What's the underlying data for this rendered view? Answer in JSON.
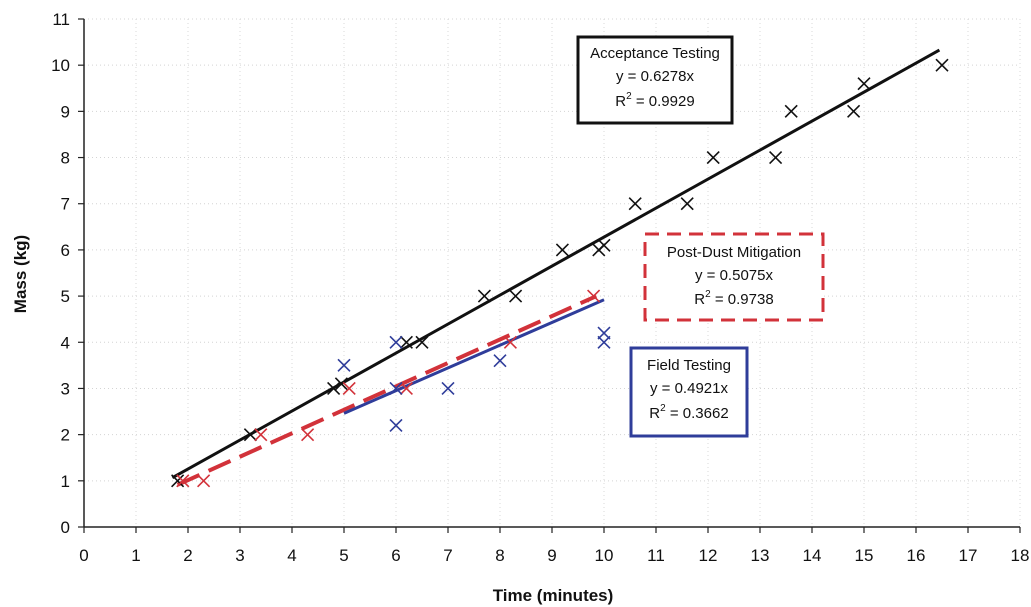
{
  "chart_data": {
    "type": "scatter",
    "xlabel": "Time (minutes)",
    "ylabel": "Mass (kg)",
    "xlim": [
      0,
      18
    ],
    "ylim": [
      0,
      11
    ],
    "x_ticks": [
      "0",
      "1",
      "2",
      "3",
      "4",
      "5",
      "6",
      "7",
      "8",
      "9",
      "10",
      "11",
      "12",
      "13",
      "14",
      "15",
      "16",
      "17",
      "18"
    ],
    "y_ticks": [
      "0",
      "1",
      "2",
      "3",
      "4",
      "5",
      "6",
      "7",
      "8",
      "9",
      "10",
      "11"
    ],
    "grid": true,
    "series": [
      {
        "color": "#111111",
        "marker": "x",
        "points": [
          [
            1.8,
            1
          ],
          [
            3.2,
            2
          ],
          [
            4.8,
            3
          ],
          [
            4.95,
            3.1
          ],
          [
            6.2,
            4
          ],
          [
            6.5,
            4
          ],
          [
            7.7,
            5
          ],
          [
            8.3,
            5
          ],
          [
            9.2,
            6
          ],
          [
            9.9,
            6
          ],
          [
            10,
            6.1
          ],
          [
            10.6,
            7
          ],
          [
            11.6,
            7
          ],
          [
            12.1,
            8
          ],
          [
            13.3,
            8
          ],
          [
            13.6,
            9
          ],
          [
            14.8,
            9
          ],
          [
            15,
            9.6
          ],
          [
            16.5,
            10
          ]
        ],
        "trendline": {
          "x": [
            1.7,
            16.45
          ],
          "slope": 0.6278,
          "style": "solid"
        },
        "annotation": {
          "title": "Acceptance Testing",
          "equation": "y = 0.6278x",
          "r2_label": "R",
          "r2_sup": "2",
          "r2_value": " = 0.9929"
        }
      },
      {
        "color": "#d2323a",
        "marker": "x",
        "points": [
          [
            1.9,
            1
          ],
          [
            2.3,
            1
          ],
          [
            3.4,
            2
          ],
          [
            4.3,
            2
          ],
          [
            5.1,
            3
          ],
          [
            6.2,
            3
          ],
          [
            8.2,
            4
          ],
          [
            9.8,
            5
          ]
        ],
        "trendline": {
          "x": [
            1.8,
            9.85
          ],
          "slope": 0.5075,
          "style": "dashed"
        },
        "annotation": {
          "title": "Post-Dust Mitigation",
          "equation": "y = 0.5075x",
          "r2_label": "R",
          "r2_sup": "2",
          "r2_value": " = 0.9738"
        }
      },
      {
        "color": "#2f3d9a",
        "marker": "x",
        "points": [
          [
            5,
            3.5
          ],
          [
            6,
            4
          ],
          [
            6,
            3
          ],
          [
            6,
            2.2
          ],
          [
            7,
            3
          ],
          [
            8,
            3.6
          ],
          [
            10,
            4.2
          ],
          [
            10,
            4
          ]
        ],
        "trendline": {
          "x": [
            5,
            10
          ],
          "slope": 0.4921,
          "style": "solid"
        },
        "annotation": {
          "title": "Field Testing",
          "equation": "y = 0.4921x",
          "r2_label": "R",
          "r2_sup": "2",
          "r2_value": " = 0.3662"
        }
      }
    ]
  }
}
